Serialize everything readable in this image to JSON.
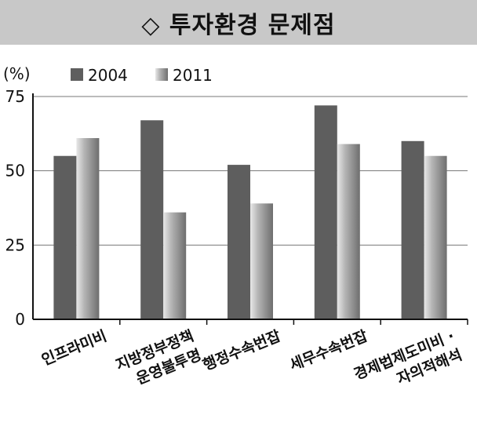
{
  "title": "◇ 투자환경 문제점",
  "chart_data": {
    "type": "bar",
    "ylabel": "(%)",
    "ylim": [
      0,
      75
    ],
    "yticks": [
      "0",
      "25",
      "50",
      "75"
    ],
    "categories": [
      [
        "인프라미비"
      ],
      [
        "지방정부정책",
        "운영불투명"
      ],
      [
        "행정수속번잡"
      ],
      [
        "세무수속번잡"
      ],
      [
        "경제법제도미비 ·",
        "자의적해석"
      ]
    ],
    "series": [
      {
        "name": "2004",
        "values": [
          55,
          67,
          52,
          72,
          60
        ],
        "color": "#5e5e5e"
      },
      {
        "name": "2011",
        "values": [
          61,
          36,
          39,
          59,
          55
        ],
        "color": "#a8a8a8"
      }
    ],
    "grid": true,
    "legend": "top-left"
  }
}
